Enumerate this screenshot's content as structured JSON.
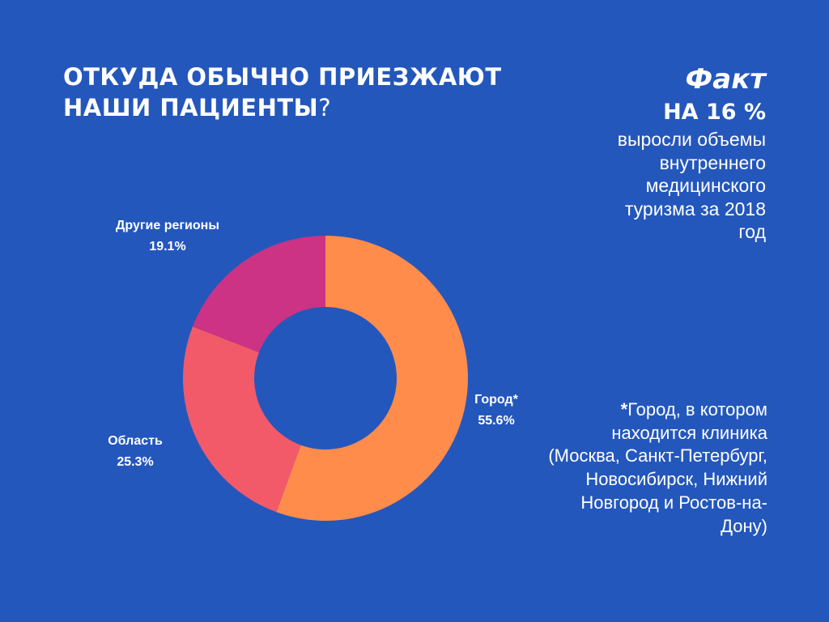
{
  "title": {
    "text": "ОТКУДА ОБЫЧНО ПРИЕЗЖАЮТ НАШИ ПАЦИЕНТЫ",
    "question_mark": "?"
  },
  "fact": {
    "heading": "Факт",
    "value": "НА 16 %",
    "text": "выросли объемы внутреннего медицинского туризма за 2018 год"
  },
  "footnote": {
    "marker": "*",
    "text": "Город, в котором находится клиника (Москва, Санкт-Петербург, Новосибирск, Нижний Новгород и Ростов-на-Дону)"
  },
  "chart_data": {
    "type": "pie",
    "variant": "donut",
    "slices": [
      {
        "label": "Город*",
        "value": 55.6,
        "display": "55.6%",
        "color": "#FF8C4B"
      },
      {
        "label": "Область",
        "value": 25.3,
        "display": "25.3%",
        "color": "#F25A6A"
      },
      {
        "label": "Другие регионы",
        "value": 19.1,
        "display": "19.1%",
        "color": "#CC3384"
      }
    ],
    "start_angle": "12 o'clock",
    "direction": "clockwise"
  }
}
